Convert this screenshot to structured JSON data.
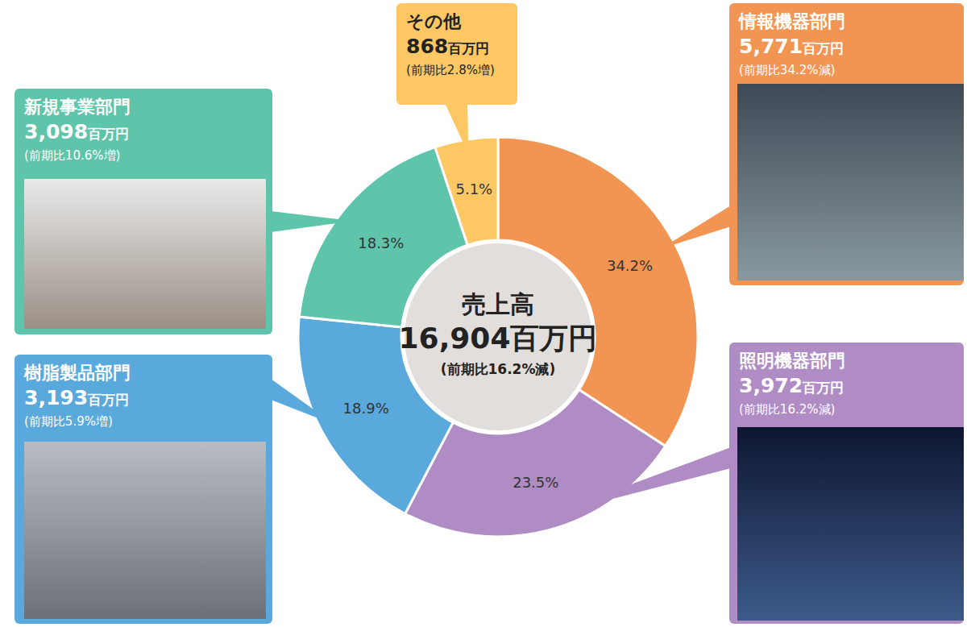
{
  "chart_data": {
    "type": "donut",
    "center_title": "売上高",
    "total": 16904,
    "total_label": "16,904",
    "total_change": "(前期比16.2%減)",
    "unit": "百万円",
    "categories": [
      "情報機器部門",
      "照明機器部門",
      "樹脂製品部門",
      "新規事業部門",
      "その他"
    ],
    "values": [
      34.2,
      23.5,
      18.9,
      18.3,
      5.1
    ],
    "value_labels": [
      "34.2%",
      "23.5%",
      "18.9%",
      "18.3%",
      "5.1%"
    ],
    "amounts": [
      5771,
      3972,
      3193,
      3098,
      868
    ],
    "amount_labels": [
      "5,771",
      "3,972",
      "3,193",
      "3,098",
      "868"
    ],
    "changes": [
      "(前期比34.2%減)",
      "(前期比16.2%減)",
      "(前期比5.9%増)",
      "(前期比10.6%増)",
      "(前期比2.8%増)"
    ],
    "colors": [
      "#f39552",
      "#b08cc4",
      "#5aa9dc",
      "#5ec4aa",
      "#fdc863"
    ],
    "data_labels": true
  }
}
